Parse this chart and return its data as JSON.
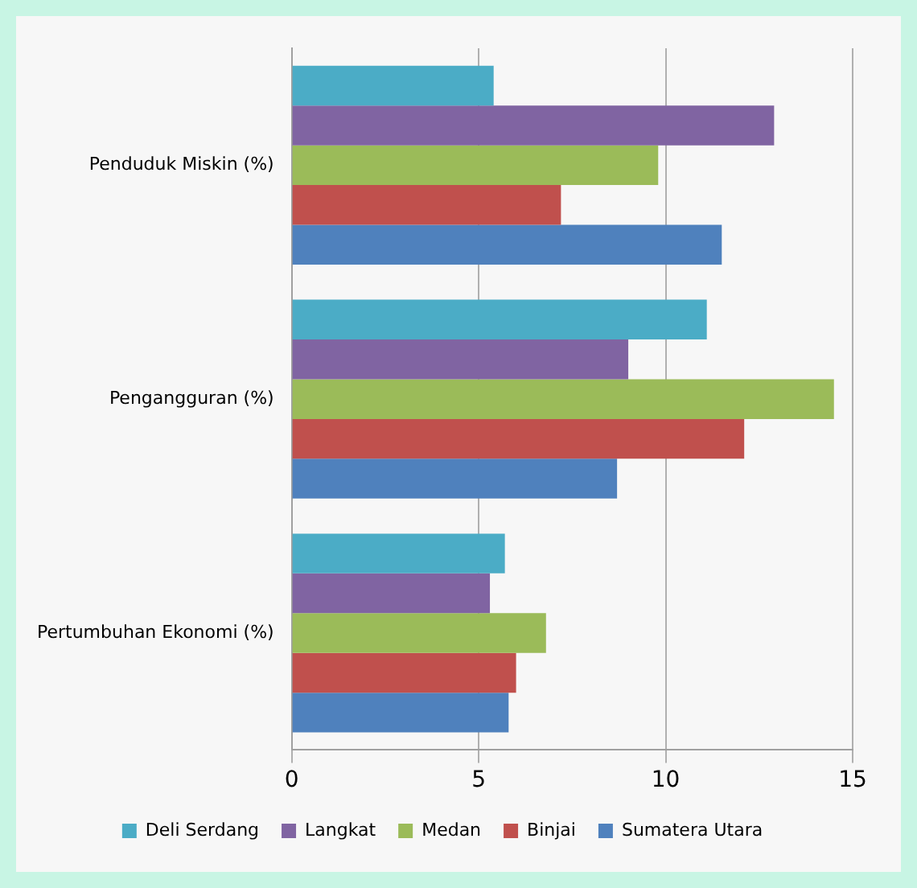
{
  "chart_data": {
    "type": "bar",
    "orientation": "horizontal",
    "categories": [
      "Penduduk Miskin (%)",
      "Pengangguran (%)",
      "Pertumbuhan Ekonomi (%)"
    ],
    "series": [
      {
        "name": "Deli Serdang",
        "color": "#4bacc6",
        "values": [
          5.4,
          11.1,
          5.7
        ]
      },
      {
        "name": "Langkat",
        "color": "#8064a2",
        "values": [
          12.9,
          9.0,
          5.3
        ]
      },
      {
        "name": "Medan",
        "color": "#9bbb59",
        "values": [
          9.8,
          14.5,
          6.8
        ]
      },
      {
        "name": "Binjai",
        "color": "#c0504d",
        "values": [
          7.2,
          12.1,
          6.0
        ]
      },
      {
        "name": "Sumatera Utara",
        "color": "#4f81bd",
        "values": [
          11.5,
          8.7,
          5.8
        ]
      }
    ],
    "xlim": [
      0,
      15
    ],
    "xticks": [
      0,
      5,
      10,
      15
    ],
    "grid": "x",
    "legend": "bottom"
  }
}
